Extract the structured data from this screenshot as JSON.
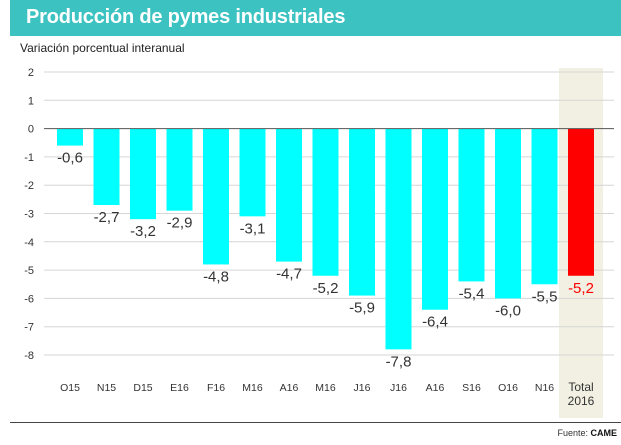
{
  "header": {
    "title": "Producción de pymes industriales"
  },
  "footer": {
    "source_label": "Fuente: ",
    "source_name": "CAME"
  },
  "colors": {
    "header_bg": "#3dc2c2",
    "bar": "#00ffff",
    "highlight_bar": "#ff0000",
    "highlight_bg": "#f1f0e3"
  },
  "chart_data": {
    "type": "bar",
    "title": "Producción de pymes industriales",
    "ylabel": "Variación porcentual interanual",
    "xlabel": "",
    "ylim": [
      -8,
      2
    ],
    "yticks": [
      "2",
      "1",
      "0",
      "-1",
      "-2",
      "-3",
      "-4",
      "-5",
      "-6",
      "-7",
      "-8"
    ],
    "grid": true,
    "categories": [
      "O15",
      "N15",
      "D15",
      "E16",
      "F16",
      "M16",
      "A16",
      "M16",
      "J16",
      "J16",
      "A16",
      "S16",
      "O16",
      "N16",
      "Total 2016"
    ],
    "values": [
      -0.6,
      -2.7,
      -3.2,
      -2.9,
      -4.8,
      -3.1,
      -4.7,
      -5.2,
      -5.9,
      -7.8,
      -6.4,
      -5.4,
      -6.0,
      -5.5,
      -5.2
    ],
    "labels": [
      "-0,6",
      "-2,7",
      "-3,2",
      "-2,9",
      "-4,8",
      "-3,1",
      "-4,7",
      "-5,2",
      "-5,9",
      "-7,8",
      "-6,4",
      "-5,4",
      "-6,0",
      "-5,5",
      "-5,2"
    ],
    "highlight_index": 14
  }
}
